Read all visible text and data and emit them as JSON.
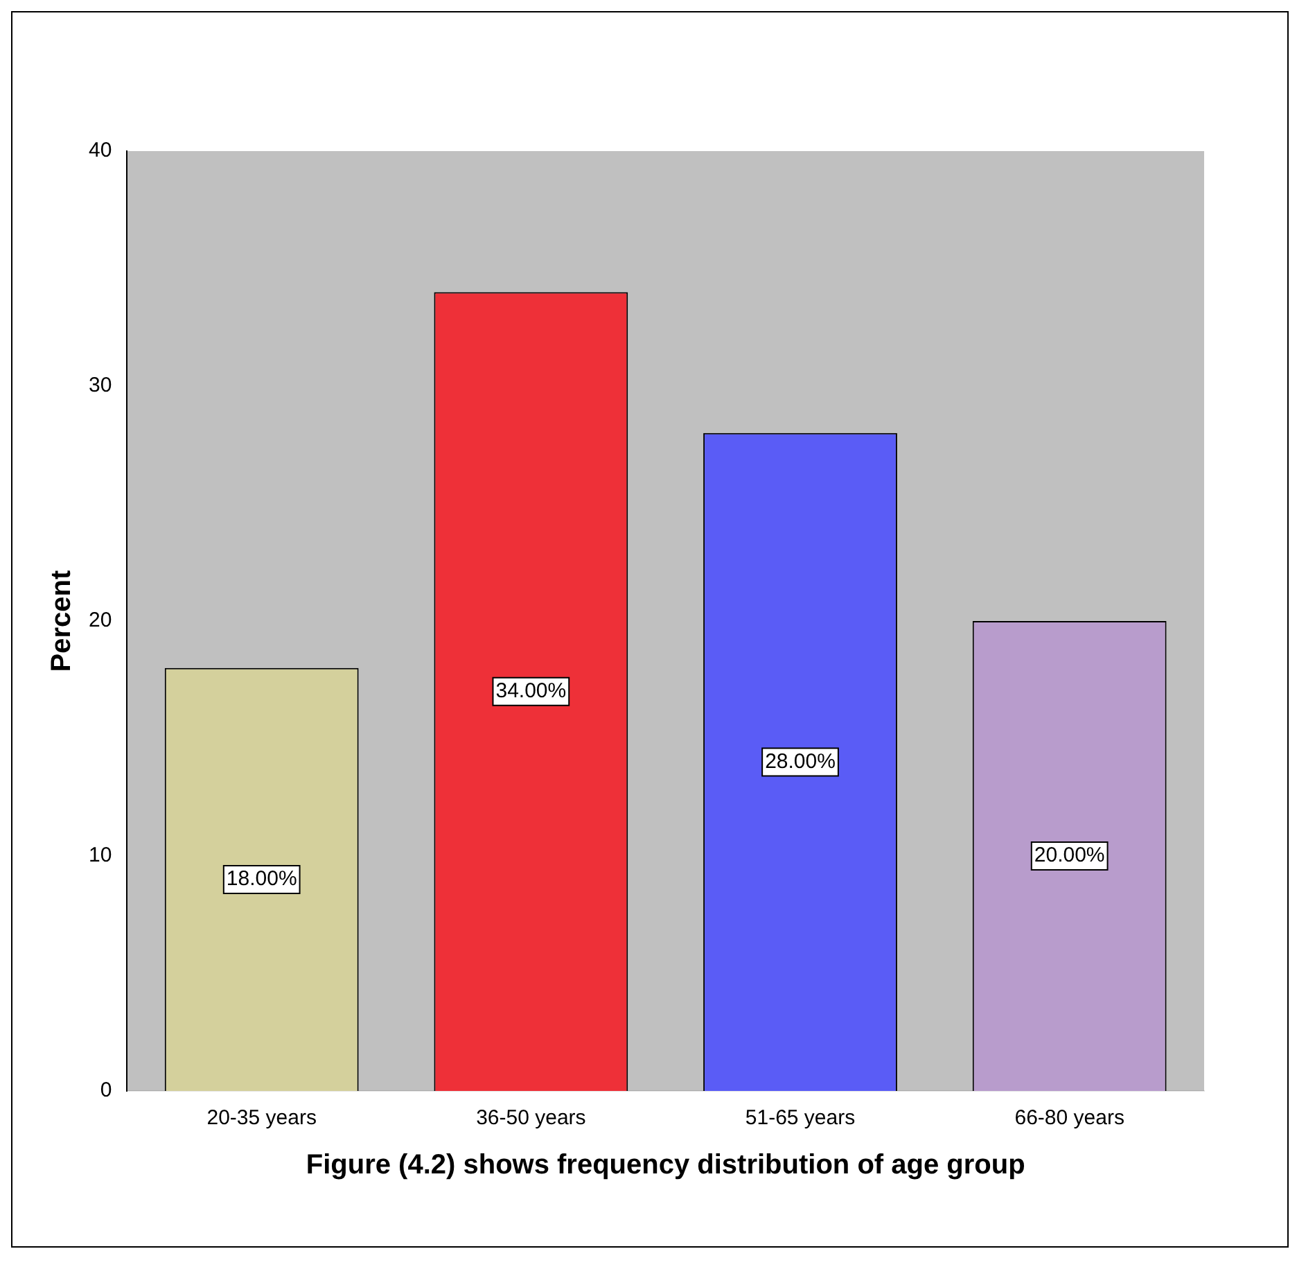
{
  "chart_data": {
    "type": "bar",
    "xlabel": "Figure (4.2) shows frequency distribution of age group",
    "ylabel": "Percent",
    "categories": [
      "20-35 years",
      "36-50 years",
      "51-65 years",
      "66-80 years"
    ],
    "values": [
      18,
      34,
      28,
      20
    ],
    "colors": [
      "#d4d09c",
      "#ee3038",
      "#5a5cf6",
      "#b89ccc"
    ],
    "value_labels": [
      "18.00%",
      "34.00%",
      "28.00%",
      "20.00%"
    ],
    "ylim": [
      0,
      40
    ],
    "yticks": [
      0,
      10,
      20,
      30,
      40
    ],
    "grid": false,
    "legend": false
  }
}
